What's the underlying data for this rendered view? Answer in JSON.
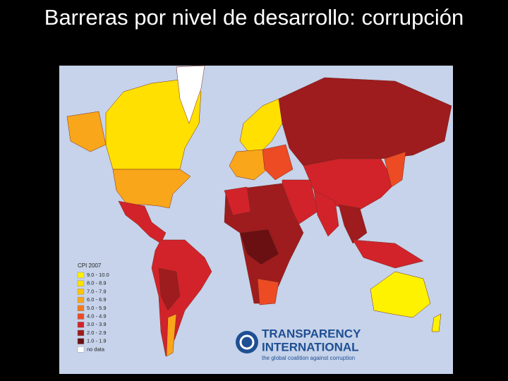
{
  "title": "Barreras por nivel de desarrollo: corrupción",
  "map": {
    "legend": {
      "title": "CPI 2007",
      "items": [
        {
          "label": "9.0 - 10.0",
          "color": "#fff200"
        },
        {
          "label": "8.0 - 8.9",
          "color": "#ffe000"
        },
        {
          "label": "7.0 - 7.9",
          "color": "#ffc400"
        },
        {
          "label": "6.0 - 6.9",
          "color": "#f9a61a"
        },
        {
          "label": "5.0 - 5.9",
          "color": "#f47b20"
        },
        {
          "label": "4.0 - 4.9",
          "color": "#ec4b24"
        },
        {
          "label": "3.0 - 3.9",
          "color": "#d2232a"
        },
        {
          "label": "2.0 - 2.9",
          "color": "#9e1b1e"
        },
        {
          "label": "1.0 - 1.9",
          "color": "#6a1013"
        },
        {
          "label": "no data",
          "color": "#ffffff"
        }
      ]
    },
    "logo": {
      "line1": "TRANSPARENCY",
      "line2": "INTERNATIONAL",
      "tagline": "the global coalition against corruption"
    }
  }
}
